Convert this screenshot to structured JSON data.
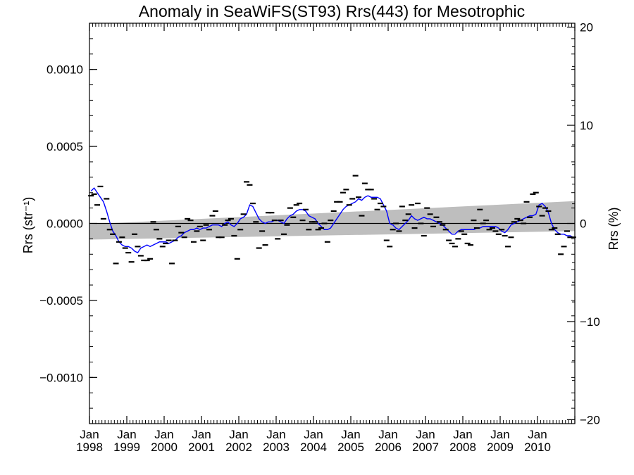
{
  "chart_data": {
    "type": "line",
    "title": "Anomaly in SeaWiFS(ST93) Rrs(443) for Mesotrophic",
    "ylabel": "Rrs (str⁻¹)",
    "y2label": "Rrs (%)",
    "xlim": [
      "1998-01",
      "2010-12"
    ],
    "ylim": [
      -0.0013,
      0.0013
    ],
    "y2lim": [
      -20.4,
      20.4
    ],
    "grid": false,
    "y_ticks": [
      {
        "value": 0.001,
        "label": "0.0010"
      },
      {
        "value": 0.0005,
        "label": "0.0005"
      },
      {
        "value": 0.0,
        "label": "0.0000"
      },
      {
        "value": -0.0005,
        "label": "−0.0005"
      },
      {
        "value": -0.001,
        "label": "−0.0010"
      }
    ],
    "y2_ticks": [
      {
        "value": 20,
        "label": "20"
      },
      {
        "value": 10,
        "label": "10"
      },
      {
        "value": 0,
        "label": "0"
      },
      {
        "value": -10,
        "label": "−10"
      },
      {
        "value": -20,
        "label": "−20"
      }
    ],
    "x_ticks": [
      {
        "value": "1998-01",
        "month": "Jan",
        "year": "1998"
      },
      {
        "value": "1999-01",
        "month": "Jan",
        "year": "1999"
      },
      {
        "value": "2000-01",
        "month": "Jan",
        "year": "2000"
      },
      {
        "value": "2001-01",
        "month": "Jan",
        "year": "2001"
      },
      {
        "value": "2002-01",
        "month": "Jan",
        "year": "2002"
      },
      {
        "value": "2003-01",
        "month": "Jan",
        "year": "2003"
      },
      {
        "value": "2004-01",
        "month": "Jan",
        "year": "2004"
      },
      {
        "value": "2005-01",
        "month": "Jan",
        "year": "2005"
      },
      {
        "value": "2006-01",
        "month": "Jan",
        "year": "2006"
      },
      {
        "value": "2007-01",
        "month": "Jan",
        "year": "2007"
      },
      {
        "value": "2008-01",
        "month": "Jan",
        "year": "2008"
      },
      {
        "value": "2009-01",
        "month": "Jan",
        "year": "2009"
      },
      {
        "value": "2010-01",
        "month": "Jan",
        "year": "2010"
      }
    ],
    "zero_line": 0.0,
    "trend_band": {
      "x": [
        "1998-01",
        "2010-12"
      ],
      "upper": [
        -5e-06,
        0.000145
      ],
      "lower": [
        -0.000105,
        -5e-05
      ]
    },
    "monthly_anomaly": {
      "x": [
        "1998-01",
        "1998-02",
        "1998-03",
        "1998-04",
        "1998-05",
        "1998-06",
        "1998-07",
        "1998-08",
        "1998-09",
        "1998-10",
        "1998-11",
        "1998-12",
        "1999-01",
        "1999-02",
        "1999-03",
        "1999-04",
        "1999-05",
        "1999-06",
        "1999-07",
        "1999-08",
        "1999-09",
        "1999-10",
        "1999-11",
        "1999-12",
        "2000-01",
        "2000-02",
        "2000-03",
        "2000-04",
        "2000-05",
        "2000-06",
        "2000-07",
        "2000-08",
        "2000-09",
        "2000-10",
        "2000-11",
        "2000-12",
        "2001-01",
        "2001-02",
        "2001-03",
        "2001-04",
        "2001-05",
        "2001-06",
        "2001-07",
        "2001-08",
        "2001-09",
        "2001-10",
        "2001-11",
        "2001-12",
        "2002-01",
        "2002-02",
        "2002-03",
        "2002-04",
        "2002-05",
        "2002-06",
        "2002-07",
        "2002-08",
        "2002-09",
        "2002-10",
        "2002-11",
        "2002-12",
        "2003-01",
        "2003-02",
        "2003-03",
        "2003-04",
        "2003-05",
        "2003-06",
        "2003-07",
        "2003-08",
        "2003-09",
        "2003-10",
        "2003-11",
        "2003-12",
        "2004-01",
        "2004-02",
        "2004-03",
        "2004-04",
        "2004-05",
        "2004-06",
        "2004-07",
        "2004-08",
        "2004-09",
        "2004-10",
        "2004-11",
        "2004-12",
        "2005-01",
        "2005-02",
        "2005-03",
        "2005-04",
        "2005-05",
        "2005-06",
        "2005-07",
        "2005-08",
        "2005-09",
        "2005-10",
        "2005-11",
        "2005-12",
        "2006-01",
        "2006-02",
        "2006-03",
        "2006-04",
        "2006-05",
        "2006-06",
        "2006-07",
        "2006-08",
        "2006-09",
        "2006-10",
        "2006-11",
        "2006-12",
        "2007-01",
        "2007-02",
        "2007-03",
        "2007-04",
        "2007-05",
        "2007-06",
        "2007-07",
        "2007-08",
        "2007-09",
        "2007-10",
        "2007-11",
        "2007-12",
        "2008-01",
        "2008-02",
        "2008-03",
        "2008-04",
        "2008-05",
        "2008-06",
        "2008-07",
        "2008-08",
        "2008-09",
        "2008-10",
        "2008-11",
        "2008-12",
        "2009-01",
        "2009-02",
        "2009-03",
        "2009-04",
        "2009-05",
        "2009-06",
        "2009-07",
        "2009-08",
        "2009-09",
        "2009-10",
        "2009-11",
        "2009-12",
        "2010-01",
        "2010-02",
        "2010-03",
        "2010-04",
        "2010-05",
        "2010-06",
        "2010-07",
        "2010-08",
        "2010-09",
        "2010-10",
        "2010-11",
        "2010-12"
      ],
      "y": [
        0.00018,
        0.00019,
        0.00012,
        0.00024,
        3e-05,
        0.00016,
        -4e-05,
        -7e-05,
        -0.00026,
        -0.00012,
        -9e-05,
        -0.00016,
        -0.00019,
        -0.00025,
        -7e-05,
        -0.00015,
        -0.00021,
        -0.00024,
        -0.00024,
        -0.00023,
        1e-05,
        -4e-05,
        -0.0001,
        -0.00015,
        -0.00013,
        -0.00011,
        -0.00026,
        -0.00011,
        -2e-05,
        -6e-05,
        -9e-05,
        3e-05,
        2e-05,
        -0.00012,
        -5e-05,
        -2e-05,
        -0.00011,
        -1e-05,
        -4e-05,
        5e-05,
        8e-05,
        -9e-05,
        -9e-05,
        -1e-05,
        2e-05,
        3e-05,
        -8e-05,
        -0.00023,
        -4e-05,
        6e-05,
        0.00027,
        0.00025,
        0.00013,
        1e-05,
        -0.00016,
        -5e-05,
        -0.00014,
        7e-05,
        7e-05,
        2e-05,
        -0.0001,
        2e-05,
        -7e-05,
        -1e-05,
        0.0001,
        4e-05,
        0.00012,
        0.00013,
        2e-05,
        9e-05,
        -4e-05,
        1e-05,
        1e-05,
        -4e-05,
        -3e-05,
        0.0,
        -0.00012,
        2e-05,
        8e-05,
        0.00014,
        0.00014,
        0.0002,
        0.00022,
        0.00012,
        0.00016,
        0.00031,
        0.00017,
        5e-05,
        0.00026,
        0.00022,
        0.00022,
        0.00016,
        9e-05,
        0.00013,
        0.00011,
        -0.00011,
        -0.00015,
        -4e-05,
        0.0,
        -5e-05,
        0.00011,
        2e-05,
        6e-05,
        0.00012,
        -3e-05,
        0.00013,
        0.0,
        -8e-05,
        0.0001,
        6e-05,
        -2e-05,
        4e-05,
        1e-05,
        -1e-05,
        -4e-05,
        -0.00011,
        -0.00013,
        -0.00015,
        -0.0001,
        -5e-05,
        -7e-05,
        -0.00013,
        -0.00014,
        2e-05,
        -3e-05,
        9e-05,
        0.0,
        2e-05,
        -4e-05,
        -3e-05,
        -5e-05,
        -7e-05,
        -4e-05,
        -8e-05,
        -0.00015,
        -9e-05,
        1e-05,
        3e-05,
        2e-05,
        0.0,
        0.00014,
        4e-05,
        0.00019,
        0.0002,
        0.00011,
        5e-05,
        0.0001,
        8e-05,
        -4e-05,
        -3e-05,
        -7e-05,
        -0.0002,
        -0.00015,
        -5e-05,
        -9e-05,
        -9e-05
      ]
    },
    "smoothed": {
      "x": [
        "1998-01",
        "1998-02",
        "1998-03",
        "1998-04",
        "1998-05",
        "1998-06",
        "1998-07",
        "1998-08",
        "1998-09",
        "1998-10",
        "1998-11",
        "1998-12",
        "1999-01",
        "1999-02",
        "1999-03",
        "1999-04",
        "1999-05",
        "1999-06",
        "1999-07",
        "1999-08",
        "1999-09",
        "1999-10",
        "1999-11",
        "1999-12",
        "2000-01",
        "2000-02",
        "2000-03",
        "2000-04",
        "2000-05",
        "2000-06",
        "2000-07",
        "2000-08",
        "2000-09",
        "2000-10",
        "2000-11",
        "2000-12",
        "2001-01",
        "2001-02",
        "2001-03",
        "2001-04",
        "2001-05",
        "2001-06",
        "2001-07",
        "2001-08",
        "2001-09",
        "2001-10",
        "2001-11",
        "2001-12",
        "2002-01",
        "2002-02",
        "2002-03",
        "2002-04",
        "2002-05",
        "2002-06",
        "2002-07",
        "2002-08",
        "2002-09",
        "2002-10",
        "2002-11",
        "2002-12",
        "2003-01",
        "2003-02",
        "2003-03",
        "2003-04",
        "2003-05",
        "2003-06",
        "2003-07",
        "2003-08",
        "2003-09",
        "2003-10",
        "2003-11",
        "2003-12",
        "2004-01",
        "2004-02",
        "2004-03",
        "2004-04",
        "2004-05",
        "2004-06",
        "2004-07",
        "2004-08",
        "2004-09",
        "2004-10",
        "2004-11",
        "2004-12",
        "2005-01",
        "2005-02",
        "2005-03",
        "2005-04",
        "2005-05",
        "2005-06",
        "2005-07",
        "2005-08",
        "2005-09",
        "2005-10",
        "2005-11",
        "2005-12",
        "2006-01",
        "2006-02",
        "2006-03",
        "2006-04",
        "2006-05",
        "2006-06",
        "2006-07",
        "2006-08",
        "2006-09",
        "2006-10",
        "2006-11",
        "2006-12",
        "2007-01",
        "2007-02",
        "2007-03",
        "2007-04",
        "2007-05",
        "2007-06",
        "2007-07",
        "2007-08",
        "2007-09",
        "2007-10",
        "2007-11",
        "2007-12",
        "2008-01",
        "2008-02",
        "2008-03",
        "2008-04",
        "2008-05",
        "2008-06",
        "2008-07",
        "2008-08",
        "2008-09",
        "2008-10",
        "2008-11",
        "2008-12",
        "2009-01",
        "2009-02",
        "2009-03",
        "2009-04",
        "2009-05",
        "2009-06",
        "2009-07",
        "2009-08",
        "2009-09",
        "2009-10",
        "2009-11",
        "2009-12",
        "2010-01",
        "2010-02",
        "2010-03",
        "2010-04",
        "2010-05",
        "2010-06",
        "2010-07",
        "2010-08",
        "2010-09",
        "2010-10",
        "2010-11",
        "2010-12"
      ],
      "y": [
        0.00021,
        0.00023,
        0.0002,
        0.00017,
        0.00014,
        8e-05,
        1e-05,
        -5e-05,
        -8e-05,
        -0.00012,
        -0.00014,
        -0.00015,
        -0.00015,
        -0.00016,
        -0.00018,
        -0.00019,
        -0.00016,
        -0.00015,
        -0.00014,
        -0.00015,
        -0.00014,
        -0.00013,
        -0.00012,
        -0.00012,
        -0.00012,
        -0.00013,
        -0.00012,
        -0.00011,
        -9e-05,
        -8e-05,
        -6e-05,
        -5e-05,
        -4e-05,
        -4e-05,
        -3e-05,
        -4e-05,
        -3e-05,
        -3e-05,
        -2e-05,
        -1e-05,
        -1e-05,
        -1e-05,
        -2e-05,
        0.0,
        1e-05,
        -1e-05,
        -2e-05,
        0.0,
        3e-05,
        4e-05,
        6e-05,
        0.00012,
        0.00011,
        7e-05,
        3e-05,
        1e-05,
        0.0,
        1e-05,
        1e-05,
        2e-05,
        2e-05,
        1e-05,
        0.0,
        3e-05,
        5e-05,
        6e-05,
        8e-05,
        9e-05,
        9e-05,
        8e-05,
        5e-05,
        4e-05,
        3e-05,
        0.0,
        -2e-05,
        -4e-05,
        -4e-05,
        -3e-05,
        0.0,
        3e-05,
        6e-05,
        9e-05,
        0.00011,
        0.00012,
        0.00013,
        0.00014,
        0.00016,
        0.00015,
        0.00017,
        0.00018,
        0.00017,
        0.00017,
        0.00017,
        0.00016,
        0.00012,
        8e-05,
        0.0,
        -1e-05,
        -3e-05,
        -4e-05,
        -2e-05,
        0.0,
        2e-05,
        5e-05,
        3e-05,
        2e-05,
        3e-05,
        4e-05,
        3e-05,
        3e-05,
        2e-05,
        1e-05,
        0.0,
        -1e-05,
        -3e-05,
        -5e-05,
        -7e-05,
        -7e-05,
        -5e-05,
        -4e-05,
        -4e-05,
        -4e-05,
        -4e-05,
        -4e-05,
        -3e-05,
        -3e-05,
        -2e-05,
        -2e-05,
        -2e-05,
        -2e-05,
        -2e-05,
        -3e-05,
        -5e-05,
        -6e-05,
        -4e-05,
        -1e-05,
        0.0,
        1e-05,
        2e-05,
        3e-05,
        4e-05,
        5e-05,
        5e-05,
        6e-05,
        0.00012,
        0.00013,
        0.00011,
        7e-05,
        0.0,
        -4e-05,
        -6e-05,
        -7e-05,
        -7e-05,
        -8e-05,
        -8e-05,
        -9e-05
      ]
    },
    "colors": {
      "smoothed_line": "#0000ff",
      "monthly_marker": "#000000",
      "trend_band": "#bebebe",
      "zero_line": "#000000",
      "axes": "#000000"
    }
  }
}
